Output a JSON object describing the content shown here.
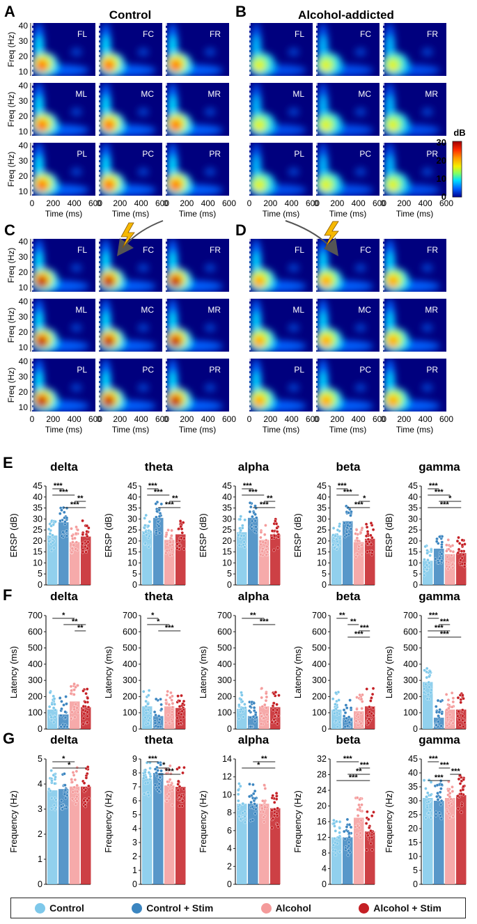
{
  "panels": {
    "A": "A",
    "B": "B",
    "C": "C",
    "D": "D",
    "E": "E",
    "F": "F",
    "G": "G"
  },
  "group_titles": {
    "control": "Control",
    "alcohol": "Alcohol-addicted"
  },
  "colorbar": {
    "unit": "dB",
    "ticks": [
      "30",
      "20",
      "10",
      "0"
    ],
    "colors": [
      "#b40000",
      "#ff3b00",
      "#ff9a00",
      "#f4f000",
      "#7cff6a",
      "#00e0ff",
      "#0070ff",
      "#000099"
    ]
  },
  "spectrogram": {
    "ylabel": "Freq (Hz)",
    "xlabel": "Time (ms)",
    "yticks": [
      "40",
      "30",
      "20",
      "10"
    ],
    "xticks": [
      "0",
      "200",
      "400",
      "600"
    ],
    "channels": [
      [
        "FL",
        "FC",
        "FR"
      ],
      [
        "ML",
        "MC",
        "MR"
      ],
      [
        "PL",
        "PC",
        "PR"
      ]
    ]
  },
  "colors": {
    "control": "#7ec8ea",
    "control_stim": "#3b85c0",
    "alcohol": "#f49b9b",
    "alcohol_stim": "#c41f24",
    "text": "#111111"
  },
  "legend": {
    "control": "Control",
    "control_stim": "Control + Stim",
    "alcohol": "Alcohol",
    "alcohol_stim": "Alcohol + Stim"
  },
  "chart_data": [
    {
      "type": "bar",
      "panel": "E",
      "ylabel": "ERSP (dB)",
      "ylim": [
        0,
        45
      ],
      "yticks": [
        "0",
        "5",
        "10",
        "15",
        "20",
        "25",
        "30",
        "35",
        "40",
        "45"
      ],
      "charts": [
        {
          "title": "delta",
          "values": [
            22.5,
            28.5,
            19.5,
            22
          ],
          "sig": [
            {
              "from": 0,
              "to": 1,
              "label": "***"
            },
            {
              "from": 0,
              "to": 2,
              "label": "***"
            },
            {
              "from": 2,
              "to": 3,
              "label": "**"
            },
            {
              "from": 1,
              "to": 3,
              "label": "***"
            }
          ]
        },
        {
          "title": "theta",
          "values": [
            24.5,
            30.5,
            20.5,
            23
          ],
          "sig": [
            {
              "from": 0,
              "to": 1,
              "label": "***"
            },
            {
              "from": 0,
              "to": 2,
              "label": "***"
            },
            {
              "from": 2,
              "to": 3,
              "label": "**"
            },
            {
              "from": 1,
              "to": 3,
              "label": "***"
            }
          ]
        },
        {
          "title": "alpha",
          "values": [
            24,
            30.5,
            20.5,
            23
          ],
          "sig": [
            {
              "from": 0,
              "to": 1,
              "label": "***"
            },
            {
              "from": 0,
              "to": 2,
              "label": "***"
            },
            {
              "from": 2,
              "to": 3,
              "label": "**"
            },
            {
              "from": 1,
              "to": 3,
              "label": "***"
            }
          ]
        },
        {
          "title": "beta",
          "values": [
            22.5,
            29,
            19.5,
            21
          ],
          "sig": [
            {
              "from": 0,
              "to": 1,
              "label": "***"
            },
            {
              "from": 0,
              "to": 2,
              "label": "***"
            },
            {
              "from": 2,
              "to": 3,
              "label": "*"
            },
            {
              "from": 1,
              "to": 3,
              "label": "***"
            }
          ]
        },
        {
          "title": "gamma",
          "values": [
            11,
            16.5,
            14,
            14.5
          ],
          "sig": [
            {
              "from": 0,
              "to": 1,
              "label": "***"
            },
            {
              "from": 0,
              "to": 2,
              "label": "***"
            },
            {
              "from": 1,
              "to": 3,
              "label": "*"
            },
            {
              "from": 0,
              "to": 3,
              "label": "***"
            }
          ]
        }
      ]
    },
    {
      "type": "bar",
      "panel": "F",
      "ylabel": "Latency (ms)",
      "ylim": [
        0,
        700
      ],
      "yticks": [
        "0",
        "100",
        "200",
        "300",
        "400",
        "500",
        "600",
        "700"
      ],
      "charts": [
        {
          "title": "delta",
          "values": [
            120,
            90,
            170,
            135
          ],
          "sig": [
            {
              "from": 0,
              "to": 2,
              "label": "*"
            },
            {
              "from": 1,
              "to": 3,
              "label": "**"
            },
            {
              "from": 2,
              "to": 3,
              "label": "**"
            }
          ]
        },
        {
          "title": "theta",
          "values": [
            140,
            80,
            140,
            130
          ],
          "sig": [
            {
              "from": 0,
              "to": 1,
              "label": "*"
            },
            {
              "from": 0,
              "to": 2,
              "label": "*"
            },
            {
              "from": 1,
              "to": 3,
              "label": "***"
            }
          ]
        },
        {
          "title": "alpha",
          "values": [
            125,
            80,
            140,
            135
          ],
          "sig": [
            {
              "from": 0,
              "to": 2,
              "label": "**"
            },
            {
              "from": 1,
              "to": 3,
              "label": "***"
            }
          ]
        },
        {
          "title": "beta",
          "values": [
            120,
            70,
            110,
            140
          ],
          "sig": [
            {
              "from": 0,
              "to": 1,
              "label": "**"
            },
            {
              "from": 1,
              "to": 2,
              "label": "**"
            },
            {
              "from": 2,
              "to": 3,
              "label": "***"
            },
            {
              "from": 1,
              "to": 3,
              "label": "***"
            }
          ]
        },
        {
          "title": "gamma",
          "values": [
            290,
            70,
            120,
            120
          ],
          "sig": [
            {
              "from": 0,
              "to": 1,
              "label": "***"
            },
            {
              "from": 1,
              "to": 2,
              "label": "***"
            },
            {
              "from": 0,
              "to": 2,
              "label": "***"
            },
            {
              "from": 0,
              "to": 3,
              "label": "***"
            }
          ]
        }
      ]
    },
    {
      "type": "bar",
      "panel": "G",
      "ylabel": "Frequency (Hz)",
      "charts": [
        {
          "title": "delta",
          "ylim": [
            0,
            5
          ],
          "yticks": [
            "0",
            "1",
            "2",
            "3",
            "4",
            "5"
          ],
          "values": [
            3.75,
            3.8,
            3.9,
            3.9
          ],
          "sig": [
            {
              "from": 0,
              "to": 2,
              "label": "*"
            },
            {
              "from": 0,
              "to": 3,
              "label": "*"
            }
          ]
        },
        {
          "title": "theta",
          "ylim": [
            0,
            9
          ],
          "yticks": [
            "0",
            "1",
            "2",
            "3",
            "4",
            "5",
            "6",
            "7",
            "8",
            "9"
          ],
          "values": [
            7.6,
            8,
            7.1,
            7
          ],
          "sig": [
            {
              "from": 0,
              "to": 1,
              "label": "***"
            },
            {
              "from": 1,
              "to": 2,
              "label": "*"
            },
            {
              "from": 1,
              "to": 3,
              "label": "***"
            }
          ]
        },
        {
          "title": "alpha",
          "ylim": [
            0,
            14
          ],
          "yticks": [
            "0",
            "2",
            "4",
            "6",
            "8",
            "10",
            "12",
            "14"
          ],
          "values": [
            9,
            9,
            9,
            8.5
          ],
          "sig": [
            {
              "from": 1,
              "to": 3,
              "label": "**"
            },
            {
              "from": 0,
              "to": 3,
              "label": "*"
            }
          ]
        },
        {
          "title": "beta",
          "ylim": [
            0,
            32
          ],
          "yticks": [
            "0",
            "4",
            "8",
            "12",
            "16",
            "20",
            "24",
            "28",
            "32"
          ],
          "values": [
            12,
            12,
            17,
            13.5
          ],
          "sig": [
            {
              "from": 0,
              "to": 2,
              "label": "***"
            },
            {
              "from": 2,
              "to": 3,
              "label": "***"
            },
            {
              "from": 1,
              "to": 3,
              "label": "**"
            },
            {
              "from": 0,
              "to": 3,
              "label": "***"
            }
          ]
        },
        {
          "title": "gamma",
          "ylim": [
            0,
            45
          ],
          "yticks": [
            "0",
            "5",
            "10",
            "15",
            "20",
            "25",
            "30",
            "35",
            "40",
            "45"
          ],
          "values": [
            31,
            30,
            31,
            32
          ],
          "sig": [
            {
              "from": 0,
              "to": 1,
              "label": "***"
            },
            {
              "from": 1,
              "to": 2,
              "label": "***"
            },
            {
              "from": 2,
              "to": 3,
              "label": "***"
            },
            {
              "from": 0,
              "to": 2,
              "label": "***"
            }
          ]
        }
      ]
    }
  ]
}
